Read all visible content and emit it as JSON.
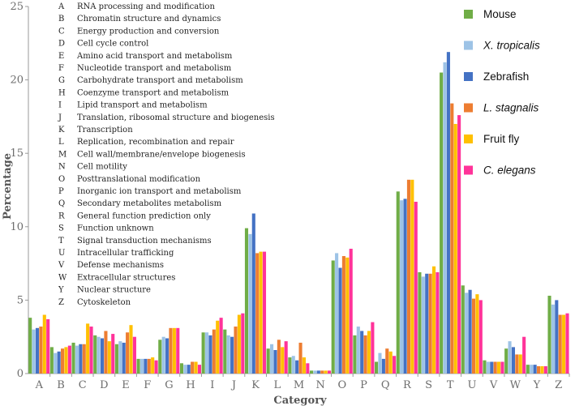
{
  "chart_data": {
    "type": "bar",
    "xlabel": "Category",
    "ylabel": "Percentage",
    "ylim": [
      0,
      25
    ],
    "yticks": [
      0,
      5,
      10,
      15,
      20,
      25
    ],
    "legend_position": "top-right",
    "categories": [
      "A",
      "B",
      "C",
      "D",
      "E",
      "F",
      "G",
      "H",
      "I",
      "J",
      "K",
      "L",
      "M",
      "N",
      "O",
      "P",
      "Q",
      "R",
      "S",
      "T",
      "U",
      "V",
      "W",
      "Y",
      "Z"
    ],
    "category_descriptions": [
      {
        "code": "A",
        "name": "RNA processing and modification"
      },
      {
        "code": "B",
        "name": "Chromatin structure and dynamics"
      },
      {
        "code": "C",
        "name": "Energy production and conversion"
      },
      {
        "code": "D",
        "name": "Cell cycle control"
      },
      {
        "code": "E",
        "name": "Amino acid transport and metabolism"
      },
      {
        "code": "F",
        "name": "Nucleotide transport and metabolism"
      },
      {
        "code": "G",
        "name": "Carbohydrate transport and metabolism"
      },
      {
        "code": "H",
        "name": "Coenzyme transport and metabolism"
      },
      {
        "code": "I",
        "name": "Lipid transport and metabolism"
      },
      {
        "code": "J",
        "name": "Translation, ribosomal structure and biogenesis"
      },
      {
        "code": "K",
        "name": "Transcription"
      },
      {
        "code": "L",
        "name": "Replication, recombination and repair"
      },
      {
        "code": "M",
        "name": "Cell wall/membrane/envelope biogenesis"
      },
      {
        "code": "N",
        "name": "Cell motility"
      },
      {
        "code": "O",
        "name": "Posttranslational modification"
      },
      {
        "code": "P",
        "name": "Inorganic ion transport and metabolism"
      },
      {
        "code": "Q",
        "name": "Secondary metabolites metabolism"
      },
      {
        "code": "R",
        "name": "General function prediction only"
      },
      {
        "code": "S",
        "name": "Function unknown"
      },
      {
        "code": "T",
        "name": "Signal transduction mechanisms"
      },
      {
        "code": "U",
        "name": "Intracellular trafficking"
      },
      {
        "code": "V",
        "name": "Defense mechanisms"
      },
      {
        "code": "W",
        "name": "Extracellular structures"
      },
      {
        "code": "Y",
        "name": "Nuclear structure"
      },
      {
        "code": "Z",
        "name": "Cytoskeleton"
      }
    ],
    "series": [
      {
        "name": "Mouse",
        "italic": false,
        "color": "#70ad47",
        "values": [
          3.8,
          1.8,
          2.1,
          2.6,
          2.0,
          1.0,
          2.3,
          0.7,
          2.8,
          3.0,
          9.9,
          1.7,
          1.1,
          0.2,
          7.7,
          2.6,
          0.8,
          12.4,
          6.9,
          20.5,
          6.0,
          0.9,
          1.7,
          0.6,
          5.3
        ]
      },
      {
        "name": "X. tropicalis",
        "italic": true,
        "color": "#9dc3e6",
        "values": [
          3.0,
          1.4,
          1.9,
          2.5,
          2.2,
          1.0,
          2.5,
          0.6,
          2.8,
          2.6,
          9.5,
          2.0,
          1.2,
          0.2,
          8.2,
          3.2,
          1.4,
          11.8,
          6.6,
          21.2,
          5.5,
          0.8,
          2.2,
          0.6,
          4.7
        ]
      },
      {
        "name": "Zebrafish",
        "italic": false,
        "color": "#4472c4",
        "values": [
          3.1,
          1.5,
          2.0,
          2.4,
          2.1,
          1.0,
          2.4,
          0.6,
          2.6,
          2.5,
          10.9,
          1.6,
          0.9,
          0.2,
          7.2,
          2.9,
          1.0,
          11.9,
          6.8,
          21.9,
          5.7,
          0.8,
          1.8,
          0.6,
          5.0
        ]
      },
      {
        "name": "L. stagnalis",
        "italic": true,
        "color": "#ed7d31",
        "values": [
          3.2,
          1.7,
          2.0,
          2.9,
          2.8,
          1.0,
          3.1,
          0.8,
          3.0,
          3.2,
          8.2,
          2.3,
          2.1,
          0.2,
          8.0,
          2.6,
          1.7,
          13.2,
          6.8,
          18.4,
          5.1,
          0.8,
          1.3,
          0.5,
          4.0
        ]
      },
      {
        "name": "Fruit fly",
        "italic": false,
        "color": "#ffc000",
        "values": [
          4.0,
          1.8,
          3.4,
          2.2,
          3.3,
          1.1,
          3.1,
          0.8,
          3.6,
          4.0,
          8.3,
          1.8,
          1.1,
          0.2,
          7.9,
          2.9,
          1.5,
          13.2,
          7.3,
          17.0,
          5.4,
          0.8,
          1.3,
          0.5,
          4.0
        ]
      },
      {
        "name": "C. elegans",
        "italic": true,
        "color": "#ff3399",
        "values": [
          3.7,
          1.9,
          3.2,
          2.7,
          2.5,
          0.9,
          3.1,
          0.6,
          3.8,
          4.1,
          8.3,
          2.2,
          0.7,
          0.2,
          8.5,
          3.5,
          1.2,
          11.7,
          6.9,
          17.6,
          5.0,
          0.8,
          2.5,
          0.5,
          4.1
        ]
      }
    ]
  }
}
